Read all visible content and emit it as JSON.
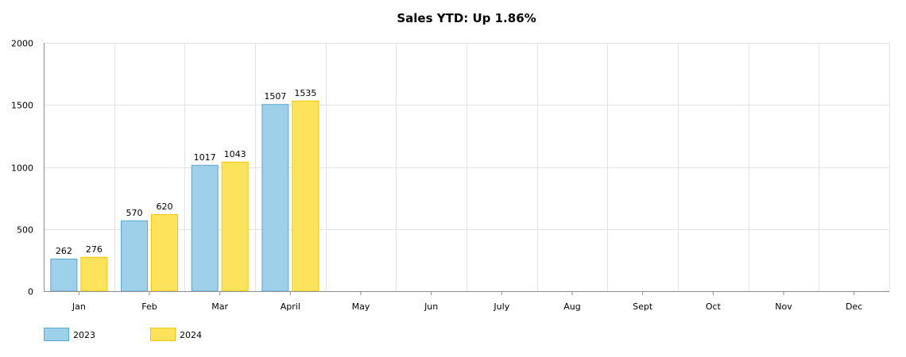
{
  "chart_data": {
    "type": "bar",
    "title": "Sales YTD: Up 1.86%",
    "xlabel": "",
    "ylabel": "",
    "categories": [
      "Jan",
      "Feb",
      "Mar",
      "April",
      "May",
      "Jun",
      "July",
      "Aug",
      "Sept",
      "Oct",
      "Nov",
      "Dec"
    ],
    "series": [
      {
        "name": "2023",
        "values": [
          262,
          570,
          1017,
          1507,
          null,
          null,
          null,
          null,
          null,
          null,
          null,
          null
        ],
        "color": "#9fd0ea",
        "stroke": "#5aa9d3"
      },
      {
        "name": "2024",
        "values": [
          276,
          620,
          1043,
          1535,
          null,
          null,
          null,
          null,
          null,
          null,
          null,
          null
        ],
        "color": "#fde35c",
        "stroke": "#f5c700"
      }
    ],
    "ylim": [
      0,
      2000
    ],
    "yticks": [
      0,
      500,
      1000,
      1500,
      2000
    ],
    "grid": true,
    "legend_position": "bottom-left",
    "data_labels": true
  }
}
